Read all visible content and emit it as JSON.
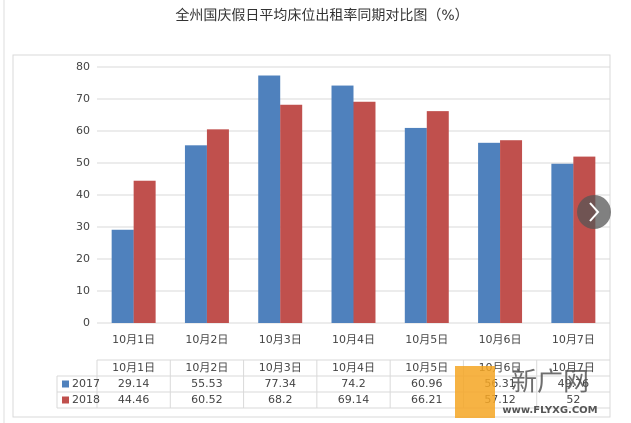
{
  "chart_data": {
    "type": "bar",
    "title": "全州国庆假日平均床位出租率同期对比图（%）",
    "categories": [
      "10月1日",
      "10月2日",
      "10月3日",
      "10月4日",
      "10月5日",
      "10月6日",
      "10月7日"
    ],
    "series": [
      {
        "name": "2017",
        "color": "#4f81bd",
        "values": [
          29.14,
          55.53,
          77.34,
          74.2,
          60.96,
          56.31,
          49.76
        ]
      },
      {
        "name": "2018",
        "color": "#c0504d",
        "values": [
          44.46,
          60.52,
          68.2,
          69.14,
          66.21,
          57.12,
          52
        ]
      }
    ],
    "ylim": [
      0,
      80
    ],
    "yticks": [
      0,
      10,
      20,
      30,
      40,
      50,
      60,
      70,
      80
    ],
    "grid": true,
    "data_table": true
  },
  "watermark": {
    "name": "新广网",
    "url": "www.FLYXG.COM"
  }
}
